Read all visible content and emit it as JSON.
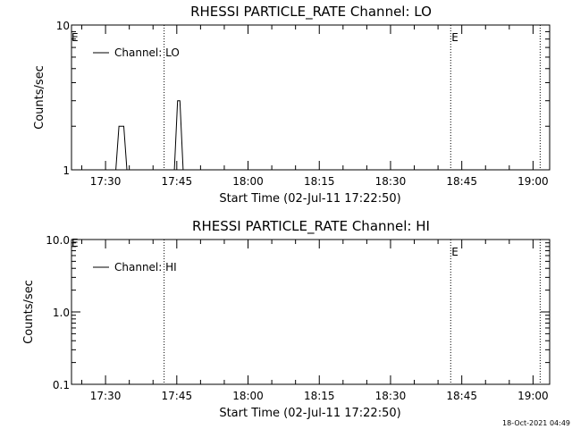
{
  "footer_timestamp": "18-Oct-2021 04:49",
  "chart_data": [
    {
      "type": "line",
      "title": "RHESSI PARTICLE_RATE Channel: LO",
      "xlabel": "Start Time (02-Jul-11 17:22:50)",
      "ylabel": "Counts/sec",
      "yscale": "log",
      "ylim": [
        1,
        10
      ],
      "y_tick_labels": [
        "1",
        "10"
      ],
      "xlim": [
        "17:22:50",
        "19:03:30"
      ],
      "x_tick_labels": [
        "17:30",
        "17:45",
        "18:00",
        "18:15",
        "18:30",
        "18:45",
        "19:00"
      ],
      "grid": false,
      "legend": "top-left",
      "series": [
        {
          "name": "Channel: LO",
          "x": [
            "17:32:10",
            "17:32:50",
            "17:33:50",
            "17:34:30",
            "17:44:30",
            "17:45:10",
            "17:45:40",
            "17:46:20"
          ],
          "y": [
            1,
            2,
            2,
            1,
            1,
            3,
            3,
            1
          ]
        }
      ],
      "vertical_markers": [
        {
          "x": "17:42:20",
          "label": ""
        },
        {
          "x": "18:42:40",
          "label": "E"
        },
        {
          "x": "19:01:30",
          "label": ""
        }
      ],
      "left_edge_label": "E"
    },
    {
      "type": "line",
      "title": "RHESSI PARTICLE_RATE Channel: HI",
      "xlabel": "Start Time (02-Jul-11 17:22:50)",
      "ylabel": "Counts/sec",
      "yscale": "log",
      "ylim": [
        0.1,
        10
      ],
      "y_tick_labels": [
        "0.1",
        "1.0",
        "10.0"
      ],
      "xlim": [
        "17:22:50",
        "19:03:30"
      ],
      "x_tick_labels": [
        "17:30",
        "17:45",
        "18:00",
        "18:15",
        "18:30",
        "18:45",
        "19:00"
      ],
      "grid": false,
      "legend": "top-left",
      "series": [
        {
          "name": "Channel: HI",
          "x": [],
          "y": []
        }
      ],
      "vertical_markers": [
        {
          "x": "17:42:20",
          "label": ""
        },
        {
          "x": "18:42:40",
          "label": "E"
        },
        {
          "x": "19:01:30",
          "label": ""
        }
      ],
      "left_edge_label": "E"
    }
  ]
}
